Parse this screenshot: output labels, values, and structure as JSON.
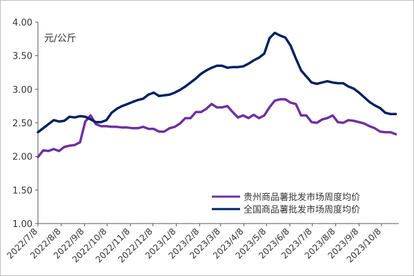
{
  "chart_data": {
    "type": "line",
    "unit_label": "元/公斤",
    "ylim": [
      1.0,
      4.0
    ],
    "y_ticks": [
      "1.00",
      "1.50",
      "2.00",
      "2.50",
      "3.00",
      "3.50",
      "4.00"
    ],
    "x_tick_labels": [
      "2022/7/8",
      "2022/8/8",
      "2022/9/8",
      "2022/10/8",
      "2022/11/8",
      "2022/12/8",
      "2023/1/8",
      "2023/2/8",
      "2023/3/8",
      "2023/4/8",
      "2023/5/8",
      "2023/6/8",
      "2023/7/8",
      "2023/8/8",
      "2023/9/8",
      "2023/10/8"
    ],
    "x_range": [
      "2022-07-08",
      "2023-10-31"
    ],
    "legend_position": "bottom-right",
    "grid": false,
    "series": [
      {
        "name": "贵州商品薯批发市场周度均价",
        "color": "#7030a0",
        "x": [
          "2022-07-08",
          "2022-07-15",
          "2022-07-22",
          "2022-07-29",
          "2022-08-05",
          "2022-08-12",
          "2022-08-19",
          "2022-08-26",
          "2022-09-02",
          "2022-09-09",
          "2022-09-16",
          "2022-09-23",
          "2022-09-30",
          "2022-10-07",
          "2022-10-14",
          "2022-10-21",
          "2022-10-28",
          "2022-11-04",
          "2022-11-11",
          "2022-11-18",
          "2022-11-25",
          "2022-12-02",
          "2022-12-09",
          "2022-12-16",
          "2022-12-23",
          "2022-12-30",
          "2023-01-06",
          "2023-01-13",
          "2023-01-20",
          "2023-01-27",
          "2023-02-03",
          "2023-02-10",
          "2023-02-17",
          "2023-02-24",
          "2023-03-03",
          "2023-03-10",
          "2023-03-17",
          "2023-03-24",
          "2023-03-31",
          "2023-04-07",
          "2023-04-14",
          "2023-04-21",
          "2023-04-28",
          "2023-05-05",
          "2023-05-12",
          "2023-05-19",
          "2023-05-26",
          "2023-06-02",
          "2023-06-09",
          "2023-06-16",
          "2023-06-23",
          "2023-06-30",
          "2023-07-07",
          "2023-07-14",
          "2023-07-21",
          "2023-07-28",
          "2023-08-04",
          "2023-08-11",
          "2023-08-18",
          "2023-08-25",
          "2023-09-01",
          "2023-09-08",
          "2023-09-15",
          "2023-09-22",
          "2023-09-29",
          "2023-10-06",
          "2023-10-13",
          "2023-10-20",
          "2023-10-27"
        ],
        "y": [
          1.99,
          2.09,
          2.08,
          2.11,
          2.08,
          2.14,
          2.16,
          2.17,
          2.21,
          2.52,
          2.61,
          2.48,
          2.45,
          2.45,
          2.44,
          2.44,
          2.43,
          2.43,
          2.42,
          2.42,
          2.44,
          2.41,
          2.41,
          2.37,
          2.37,
          2.42,
          2.44,
          2.49,
          2.57,
          2.57,
          2.66,
          2.66,
          2.71,
          2.78,
          2.73,
          2.73,
          2.75,
          2.66,
          2.58,
          2.61,
          2.57,
          2.62,
          2.57,
          2.61,
          2.73,
          2.83,
          2.85,
          2.85,
          2.8,
          2.78,
          2.61,
          2.61,
          2.51,
          2.5,
          2.55,
          2.57,
          2.61,
          2.51,
          2.5,
          2.54,
          2.53,
          2.51,
          2.49,
          2.45,
          2.42,
          2.37,
          2.36,
          2.36,
          2.33
        ]
      },
      {
        "name": "全国商品薯批发市场周度均价",
        "color": "#002060",
        "x": [
          "2022-07-08",
          "2022-07-15",
          "2022-07-22",
          "2022-07-29",
          "2022-08-05",
          "2022-08-12",
          "2022-08-19",
          "2022-08-26",
          "2022-09-02",
          "2022-09-09",
          "2022-09-16",
          "2022-09-23",
          "2022-09-30",
          "2022-10-07",
          "2022-10-14",
          "2022-10-21",
          "2022-10-28",
          "2022-11-04",
          "2022-11-11",
          "2022-11-18",
          "2022-11-25",
          "2022-12-02",
          "2022-12-09",
          "2022-12-16",
          "2022-12-23",
          "2022-12-30",
          "2023-01-06",
          "2023-01-13",
          "2023-01-20",
          "2023-01-27",
          "2023-02-03",
          "2023-02-10",
          "2023-02-17",
          "2023-02-24",
          "2023-03-03",
          "2023-03-10",
          "2023-03-17",
          "2023-03-24",
          "2023-03-31",
          "2023-04-07",
          "2023-04-14",
          "2023-04-21",
          "2023-04-28",
          "2023-05-05",
          "2023-05-12",
          "2023-05-19",
          "2023-05-26",
          "2023-06-02",
          "2023-06-09",
          "2023-06-16",
          "2023-06-23",
          "2023-06-30",
          "2023-07-07",
          "2023-07-14",
          "2023-07-21",
          "2023-07-28",
          "2023-08-04",
          "2023-08-11",
          "2023-08-18",
          "2023-08-25",
          "2023-09-01",
          "2023-09-08",
          "2023-09-15",
          "2023-09-22",
          "2023-09-29",
          "2023-10-06",
          "2023-10-13",
          "2023-10-20",
          "2023-10-27"
        ],
        "y": [
          2.36,
          2.42,
          2.48,
          2.54,
          2.52,
          2.53,
          2.59,
          2.58,
          2.6,
          2.59,
          2.55,
          2.51,
          2.51,
          2.54,
          2.65,
          2.71,
          2.75,
          2.78,
          2.81,
          2.84,
          2.86,
          2.92,
          2.95,
          2.9,
          2.91,
          2.92,
          2.95,
          2.99,
          3.04,
          3.1,
          3.16,
          3.23,
          3.28,
          3.32,
          3.35,
          3.35,
          3.32,
          3.33,
          3.33,
          3.34,
          3.38,
          3.43,
          3.47,
          3.53,
          3.76,
          3.84,
          3.8,
          3.77,
          3.65,
          3.46,
          3.28,
          3.19,
          3.1,
          3.08,
          3.1,
          3.12,
          3.1,
          3.09,
          3.09,
          3.04,
          3.01,
          2.95,
          2.88,
          2.81,
          2.76,
          2.72,
          2.65,
          2.63,
          2.63
        ]
      }
    ]
  }
}
